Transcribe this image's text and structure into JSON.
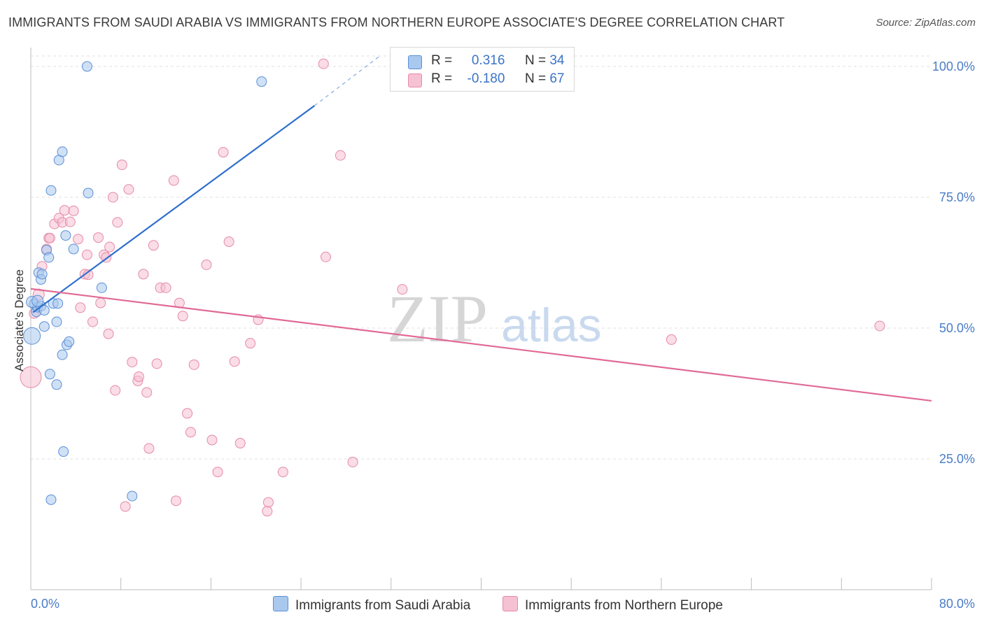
{
  "title": "IMMIGRANTS FROM SAUDI ARABIA VS IMMIGRANTS FROM NORTHERN EUROPE ASSOCIATE'S DEGREE CORRELATION CHART",
  "source": "Source: ZipAtlas.com",
  "watermark": {
    "zip": "ZIP",
    "atlas": "atlas"
  },
  "legend_top": {
    "r_label": "R =",
    "n_label": "N =",
    "rows": [
      {
        "r": "0.316",
        "n": "34"
      },
      {
        "r": "-0.180",
        "n": "67"
      }
    ]
  },
  "colors": {
    "blue_fill": "#a9c8ee",
    "blue_stroke": "#5b8fd6",
    "blue_line": "#2f6fce",
    "pink_fill": "#f6c1d2",
    "pink_stroke": "#e58aa8",
    "pink_line": "#e06a96",
    "tick_text": "#4a7cc7",
    "grid": "#e2e2e2"
  },
  "chart_data": {
    "type": "scatter",
    "title": "IMMIGRANTS FROM SAUDI ARABIA VS IMMIGRANTS FROM NORTHERN EUROPE ASSOCIATE'S DEGREE CORRELATION CHART",
    "xlabel": "",
    "ylabel": "Associate's Degree",
    "xlim": [
      0,
      80
    ],
    "ylim": [
      0,
      102
    ],
    "x_tick_labels": [
      "0.0%",
      "80.0%"
    ],
    "y_ticks": [
      25,
      50,
      75,
      100
    ],
    "y_tick_labels": [
      "25.0%",
      "50.0%",
      "75.0%",
      "100.0%"
    ],
    "grid": true,
    "legend_position": "bottom",
    "series": [
      {
        "name": "Immigrants from Saudi Arabia",
        "r": 0.316,
        "n": 34,
        "trend": {
          "x0": 0.2,
          "y0": 53,
          "x1": 25.2,
          "y1": 92.5,
          "dash_to_x": 31,
          "dash_to_y": 102
        },
        "points": [
          [
            0.3,
            54.6,
            7
          ],
          [
            0.5,
            53.1,
            7
          ],
          [
            0.6,
            54.0,
            7
          ],
          [
            0.7,
            60.6,
            7
          ],
          [
            0.9,
            54.2,
            7
          ],
          [
            0.9,
            59.3,
            7
          ],
          [
            1.0,
            60.3,
            7
          ],
          [
            1.2,
            53.4,
            7
          ],
          [
            1.2,
            50.3,
            7
          ],
          [
            1.4,
            64.9,
            7
          ],
          [
            1.6,
            63.5,
            7
          ],
          [
            1.7,
            41.2,
            7
          ],
          [
            1.8,
            17.2,
            7
          ],
          [
            1.8,
            76.3,
            7
          ],
          [
            2.0,
            54.7,
            7
          ],
          [
            2.3,
            39.2,
            7
          ],
          [
            2.3,
            51.2,
            7
          ],
          [
            2.4,
            54.7,
            7
          ],
          [
            2.5,
            82.1,
            7
          ],
          [
            2.8,
            44.9,
            7
          ],
          [
            2.8,
            83.7,
            7
          ],
          [
            2.9,
            26.4,
            7
          ],
          [
            3.1,
            67.7,
            7
          ],
          [
            3.2,
            46.8,
            7
          ],
          [
            3.4,
            47.4,
            7
          ],
          [
            3.8,
            65.1,
            7
          ],
          [
            5.1,
            75.8,
            7
          ],
          [
            5.0,
            100.0,
            7
          ],
          [
            6.3,
            57.7,
            7
          ],
          [
            9.0,
            17.9,
            7
          ],
          [
            20.5,
            97.1,
            7
          ],
          [
            0.1,
            48.5,
            12
          ],
          [
            0.1,
            55.0,
            8
          ],
          [
            0.6,
            55.2,
            8
          ]
        ]
      },
      {
        "name": "Immigrants from Northern Europe",
        "r": -0.18,
        "n": 67,
        "trend": {
          "x0": 0,
          "y0": 57.5,
          "x1": 80,
          "y1": 36.1
        },
        "points": [
          [
            0.0,
            40.6,
            15
          ],
          [
            0.7,
            56.4,
            8
          ],
          [
            1.0,
            61.8,
            7
          ],
          [
            1.4,
            65.1,
            7
          ],
          [
            1.6,
            67.2,
            7
          ],
          [
            1.7,
            67.2,
            7
          ],
          [
            2.1,
            69.9,
            7
          ],
          [
            2.5,
            71.0,
            7
          ],
          [
            2.8,
            70.2,
            7
          ],
          [
            3.0,
            72.5,
            7
          ],
          [
            3.5,
            70.3,
            7
          ],
          [
            3.8,
            72.4,
            7
          ],
          [
            4.2,
            67.0,
            7
          ],
          [
            4.4,
            53.9,
            7
          ],
          [
            4.8,
            60.3,
            7
          ],
          [
            5.0,
            64.0,
            7
          ],
          [
            5.1,
            60.2,
            7
          ],
          [
            5.5,
            51.2,
            7
          ],
          [
            6.0,
            67.3,
            7
          ],
          [
            6.2,
            54.8,
            7
          ],
          [
            6.5,
            64.0,
            7
          ],
          [
            6.7,
            63.5,
            7
          ],
          [
            6.9,
            48.9,
            7
          ],
          [
            7.0,
            65.5,
            7
          ],
          [
            7.3,
            75.0,
            7
          ],
          [
            7.5,
            38.1,
            7
          ],
          [
            7.7,
            70.2,
            7
          ],
          [
            8.1,
            81.2,
            7
          ],
          [
            8.7,
            76.5,
            7
          ],
          [
            9.0,
            43.5,
            7
          ],
          [
            9.5,
            39.9,
            7
          ],
          [
            9.6,
            40.7,
            7
          ],
          [
            10.0,
            60.3,
            7
          ],
          [
            10.3,
            37.7,
            7
          ],
          [
            10.5,
            27.0,
            7
          ],
          [
            10.9,
            65.8,
            7
          ],
          [
            11.2,
            43.2,
            7
          ],
          [
            11.5,
            57.7,
            7
          ],
          [
            12.0,
            57.7,
            7
          ],
          [
            12.7,
            78.2,
            7
          ],
          [
            12.9,
            17.0,
            7
          ],
          [
            13.2,
            54.8,
            7
          ],
          [
            13.5,
            52.3,
            7
          ],
          [
            13.9,
            33.7,
            7
          ],
          [
            14.2,
            30.1,
            7
          ],
          [
            14.5,
            43.0,
            7
          ],
          [
            15.6,
            62.1,
            7
          ],
          [
            16.1,
            28.6,
            7
          ],
          [
            16.6,
            22.5,
            7
          ],
          [
            17.1,
            83.6,
            7
          ],
          [
            17.6,
            66.5,
            7
          ],
          [
            18.1,
            43.6,
            7
          ],
          [
            18.6,
            28.0,
            7
          ],
          [
            19.5,
            47.1,
            7
          ],
          [
            20.2,
            51.6,
            7
          ],
          [
            21.1,
            16.7,
            7
          ],
          [
            22.4,
            22.5,
            7
          ],
          [
            26.0,
            100.5,
            7
          ],
          [
            26.2,
            63.6,
            7
          ],
          [
            27.5,
            83.0,
            7
          ],
          [
            28.6,
            24.4,
            7
          ],
          [
            33.0,
            57.4,
            7
          ],
          [
            56.9,
            47.8,
            7
          ],
          [
            75.4,
            50.4,
            7
          ],
          [
            8.4,
            15.9,
            7
          ],
          [
            21.0,
            15.0,
            7
          ],
          [
            0.3,
            52.8,
            7
          ]
        ]
      }
    ]
  }
}
